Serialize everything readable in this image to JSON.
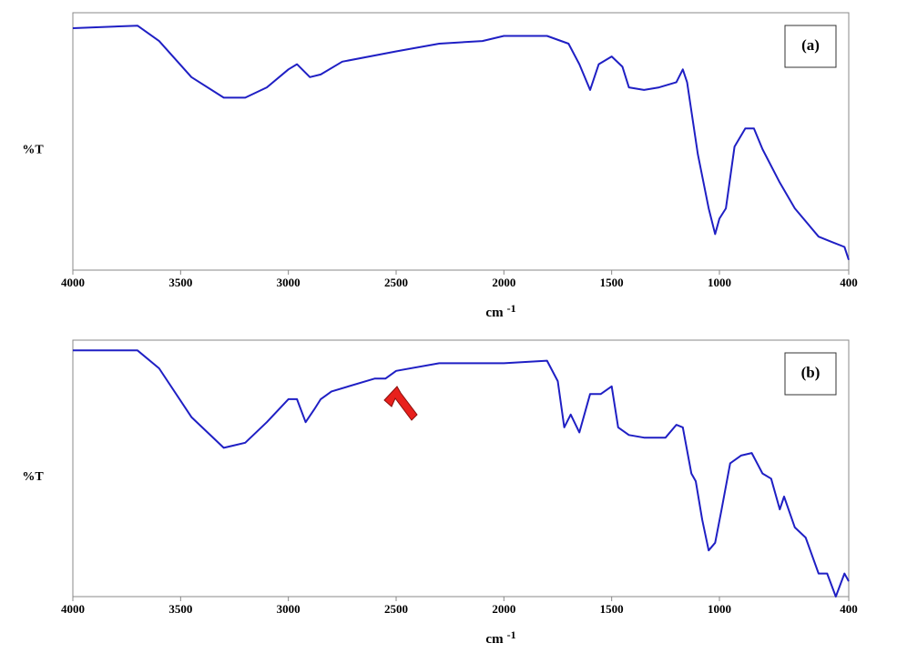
{
  "chart_data": [
    {
      "type": "line",
      "label": "(a)",
      "ylabel": "%T",
      "xlabel": "cm",
      "xlabel_exponent": "-1",
      "color": "#1f1fc4",
      "xlim": [
        4000,
        400
      ],
      "xticks": [
        4000,
        3500,
        3000,
        2500,
        2000,
        1500,
        1000,
        400
      ],
      "ylim": [
        0,
        100
      ],
      "x": [
        4000,
        3700,
        3600,
        3450,
        3300,
        3200,
        3100,
        3000,
        2960,
        2900,
        2850,
        2750,
        2500,
        2300,
        2100,
        2000,
        1800,
        1700,
        1650,
        1600,
        1560,
        1500,
        1450,
        1420,
        1350,
        1280,
        1200,
        1170,
        1150,
        1100,
        1050,
        1020,
        1000,
        970,
        930,
        880,
        840,
        800,
        720,
        650,
        540,
        480,
        420,
        400
      ],
      "values": [
        94,
        95,
        89,
        75,
        67,
        67,
        71,
        78,
        80,
        75,
        76,
        81,
        85,
        88,
        89,
        91,
        91,
        88,
        80,
        70,
        80,
        83,
        79,
        71,
        70,
        71,
        73,
        78,
        73,
        45,
        24,
        14,
        20,
        24,
        48,
        55,
        55,
        47,
        34,
        24,
        13,
        11,
        9,
        4
      ]
    },
    {
      "type": "line",
      "label": "(b)",
      "ylabel": "%T",
      "xlabel": "cm",
      "xlabel_exponent": "-1",
      "color": "#1f1fc4",
      "xlim": [
        4000,
        400
      ],
      "xticks": [
        4000,
        3500,
        3000,
        2500,
        2000,
        1500,
        1000,
        400
      ],
      "ylim": [
        0,
        100
      ],
      "x": [
        4000,
        3700,
        3600,
        3450,
        3300,
        3200,
        3100,
        3000,
        2960,
        2920,
        2880,
        2850,
        2800,
        2600,
        2550,
        2500,
        2300,
        2000,
        1800,
        1750,
        1720,
        1690,
        1650,
        1600,
        1550,
        1500,
        1470,
        1420,
        1350,
        1250,
        1200,
        1170,
        1130,
        1110,
        1080,
        1050,
        1020,
        990,
        950,
        900,
        850,
        800,
        760,
        720,
        700,
        650,
        600,
        540,
        500,
        460,
        420,
        400
      ],
      "values": [
        96,
        96,
        89,
        70,
        58,
        60,
        68,
        77,
        77,
        68,
        73,
        77,
        80,
        85,
        85,
        88,
        91,
        91,
        92,
        84,
        66,
        71,
        64,
        79,
        79,
        82,
        66,
        63,
        62,
        62,
        67,
        66,
        48,
        45,
        30,
        18,
        21,
        34,
        52,
        55,
        56,
        48,
        46,
        34,
        39,
        27,
        23,
        9,
        9,
        0,
        9,
        6
      ]
    }
  ]
}
